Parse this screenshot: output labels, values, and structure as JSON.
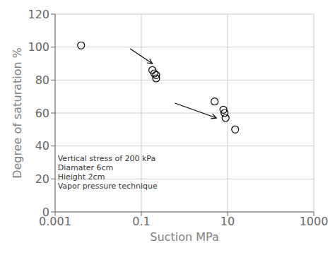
{
  "chart_data": {
    "type": "scatter",
    "xlabel": "Suction MPa",
    "ylabel": "Degree of saturation %",
    "x": [
      0.004,
      0.18,
      0.2,
      0.22,
      0.22,
      5.0,
      8.0,
      8.5,
      9.0,
      15.0
    ],
    "values": [
      101,
      86,
      84,
      83,
      81,
      67,
      62,
      60,
      57,
      50
    ],
    "xlim": [
      0.001,
      1000
    ],
    "ylim": [
      0,
      120
    ],
    "xticks": [
      0.001,
      0.1,
      10,
      1000
    ],
    "yticks": [
      0,
      20,
      40,
      60,
      80,
      100,
      120
    ],
    "log": "x",
    "grid": true,
    "marker": "circle",
    "color": "black",
    "annotations": [
      {
        "text": "Vertical stress of 200 kPa\nDiamater 6cm\nHieight 2cm\nVapor pressure technique",
        "x": 0.00115,
        "y": 13
      }
    ],
    "arrows": [
      {
        "from": [
          0.055,
          99
        ],
        "to": [
          0.18,
          90
        ]
      },
      {
        "from": [
          0.6,
          66
        ],
        "to": [
          5.5,
          57
        ]
      }
    ]
  }
}
